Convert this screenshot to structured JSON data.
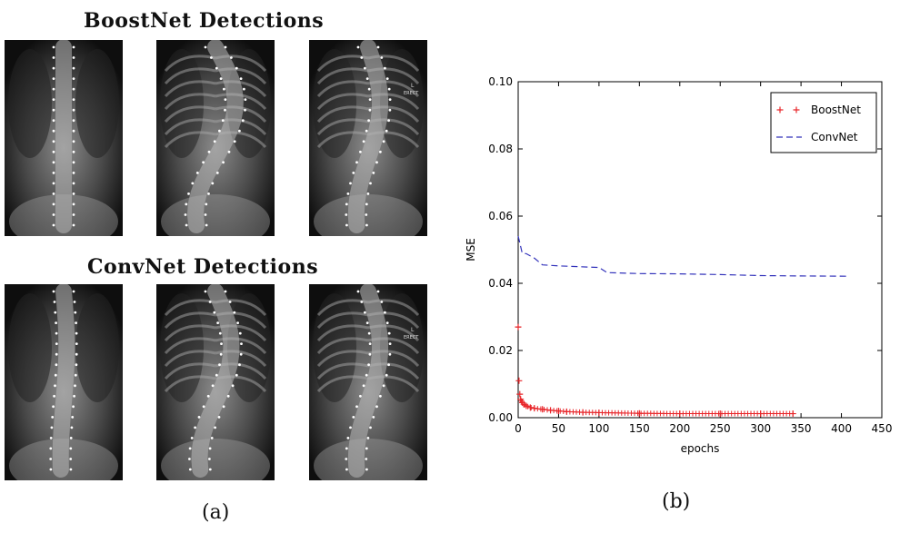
{
  "panel_a": {
    "title_top": "BoostNet Detections",
    "title_bottom": "ConvNet Detections",
    "caption": "(a)",
    "xray_marker_letter": "L",
    "xray_marker_word": "ERECT"
  },
  "panel_b": {
    "caption": "(b)"
  },
  "chart_data": {
    "type": "line",
    "title": "",
    "xlabel": "epochs",
    "ylabel": "MSE",
    "xlim": [
      0,
      450
    ],
    "ylim": [
      0.0,
      0.1
    ],
    "xticks": [
      "0",
      "50",
      "100",
      "150",
      "200",
      "250",
      "300",
      "350",
      "400",
      "450"
    ],
    "yticks": [
      "0.00",
      "0.02",
      "0.04",
      "0.06",
      "0.08",
      "0.10"
    ],
    "legend_position": "top-right",
    "series": [
      {
        "name": "BoostNet",
        "color": "#e8262a",
        "marker": "+",
        "x": [
          0,
          1,
          2,
          3,
          5,
          7,
          10,
          15,
          20,
          30,
          40,
          50,
          60,
          80,
          100,
          150,
          200,
          250,
          300,
          340
        ],
        "y": [
          0.027,
          0.011,
          0.007,
          0.0055,
          0.0045,
          0.004,
          0.0035,
          0.003,
          0.0028,
          0.0025,
          0.0022,
          0.002,
          0.0018,
          0.0016,
          0.0015,
          0.0013,
          0.0012,
          0.0012,
          0.0012,
          0.0012
        ]
      },
      {
        "name": "ConvNet",
        "color": "#3333bb",
        "style": "dashed",
        "x": [
          0,
          2,
          5,
          10,
          20,
          30,
          50,
          100,
          110,
          150,
          200,
          250,
          300,
          350,
          409
        ],
        "y": [
          0.054,
          0.052,
          0.049,
          0.0488,
          0.0475,
          0.0455,
          0.0452,
          0.0447,
          0.0432,
          0.0429,
          0.0428,
          0.0426,
          0.0423,
          0.0422,
          0.0421
        ]
      }
    ]
  }
}
